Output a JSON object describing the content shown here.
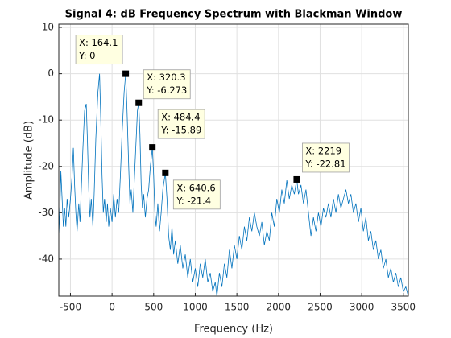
{
  "chart_data": {
    "type": "line",
    "title": "Signal 4: dB Frequency Spectrum with Blackman Window",
    "x_label": "Frequency (Hz)",
    "y_label": "Amplitude (dB)",
    "xlim": [
      -640,
      3560
    ],
    "ylim": [
      -48,
      10.7
    ],
    "xticks": [
      -500,
      0,
      500,
      1000,
      1500,
      2000,
      2500,
      3000,
      3500
    ],
    "yticks": [
      -40,
      -30,
      -20,
      -10,
      0,
      10
    ],
    "grid": true,
    "series": [
      {
        "color": "#0072bd",
        "x": [
          -640,
          -625,
          -615,
          -600,
          -585,
          -570,
          -555,
          -540,
          -520,
          -500,
          -480,
          -465,
          -450,
          -435,
          -420,
          -400,
          -385,
          -370,
          -350,
          -330,
          -310,
          -295,
          -280,
          -265,
          -250,
          -230,
          -215,
          -195,
          -170,
          -150,
          -135,
          -120,
          -105,
          -90,
          -70,
          -55,
          -40,
          -20,
          0,
          20,
          40,
          60,
          80,
          100,
          120,
          145,
          164.1,
          180,
          200,
          215,
          230,
          250,
          270,
          290,
          305,
          320.3,
          335,
          350,
          365,
          380,
          400,
          420,
          440,
          460,
          484.4,
          500,
          515,
          530,
          550,
          570,
          590,
          610,
          640.6,
          660,
          680,
          700,
          720,
          740,
          760,
          790,
          820,
          850,
          880,
          910,
          940,
          970,
          1000,
          1030,
          1060,
          1090,
          1120,
          1150,
          1180,
          1210,
          1240,
          1260,
          1290,
          1320,
          1350,
          1380,
          1410,
          1440,
          1470,
          1500,
          1530,
          1560,
          1590,
          1620,
          1650,
          1680,
          1710,
          1740,
          1770,
          1800,
          1830,
          1860,
          1890,
          1920,
          1950,
          1980,
          2010,
          2040,
          2070,
          2100,
          2130,
          2160,
          2190,
          2219,
          2240,
          2270,
          2300,
          2330,
          2360,
          2390,
          2420,
          2450,
          2480,
          2510,
          2540,
          2570,
          2600,
          2630,
          2660,
          2690,
          2720,
          2750,
          2780,
          2810,
          2840,
          2870,
          2900,
          2930,
          2960,
          2990,
          3020,
          3050,
          3080,
          3110,
          3140,
          3170,
          3200,
          3230,
          3260,
          3290,
          3320,
          3350,
          3380,
          3410,
          3440,
          3470,
          3500,
          3530,
          3560
        ],
        "values": [
          -35,
          -28,
          -21,
          -27,
          -33,
          -29,
          -33,
          -27,
          -31,
          -27,
          -22,
          -16,
          -24,
          -30,
          -34,
          -28,
          -32,
          -25,
          -16,
          -8,
          -6.5,
          -15,
          -25,
          -31,
          -27,
          -33,
          -26,
          -14,
          -4,
          0,
          -10,
          -22,
          -30,
          -27,
          -32,
          -28,
          -33,
          -29,
          -32,
          -26,
          -31,
          -27,
          -30,
          -22,
          -13,
          -4,
          0,
          -8,
          -20,
          -28,
          -25,
          -30,
          -22,
          -14,
          -8,
          -6.273,
          -13,
          -24,
          -29,
          -26,
          -31,
          -27,
          -25,
          -20,
          -15.89,
          -22,
          -30,
          -33,
          -28,
          -34,
          -30,
          -25,
          -21.4,
          -27,
          -35,
          -38,
          -33,
          -39,
          -36,
          -41,
          -37,
          -42,
          -39,
          -44,
          -40,
          -45,
          -42,
          -46,
          -41,
          -44,
          -40,
          -45,
          -43,
          -47,
          -45,
          -48,
          -43,
          -46,
          -41,
          -44,
          -38,
          -42,
          -37,
          -40,
          -35,
          -38,
          -33,
          -36,
          -31,
          -34,
          -30,
          -33,
          -35,
          -32,
          -37,
          -34,
          -36,
          -30,
          -33,
          -27,
          -30,
          -25,
          -28,
          -23,
          -27,
          -24,
          -26,
          -22.81,
          -26,
          -24,
          -28,
          -25,
          -30,
          -35,
          -31,
          -34,
          -30,
          -33,
          -29,
          -31,
          -28,
          -31,
          -27,
          -30,
          -26,
          -29,
          -27,
          -25,
          -28,
          -26,
          -30,
          -28,
          -32,
          -29,
          -34,
          -31,
          -36,
          -34,
          -38,
          -36,
          -40,
          -38,
          -42,
          -40,
          -44,
          -42,
          -45,
          -43,
          -46,
          -44,
          -47,
          -46,
          -48
        ]
      }
    ],
    "annotations": [
      {
        "x": 164.1,
        "y": 0,
        "label_x": "X: 164.1",
        "label_y": "Y: 0"
      },
      {
        "x": 320.3,
        "y": -6.273,
        "label_x": "X: 320.3",
        "label_y": "Y: -6.273"
      },
      {
        "x": 484.4,
        "y": -15.89,
        "label_x": "X: 484.4",
        "label_y": "Y: -15.89"
      },
      {
        "x": 640.6,
        "y": -21.4,
        "label_x": "X: 640.6",
        "label_y": "Y: -21.4"
      },
      {
        "x": 2219,
        "y": -22.81,
        "label_x": "X: 2219",
        "label_y": "Y: -22.81"
      }
    ]
  }
}
